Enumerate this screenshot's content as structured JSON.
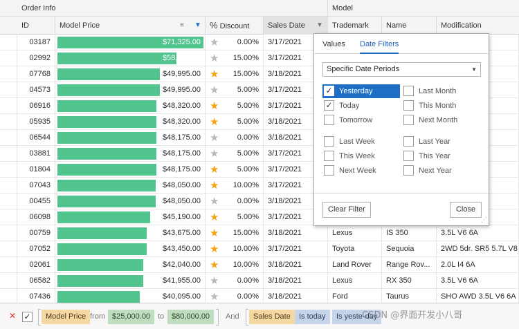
{
  "bands": {
    "order_info": "Order Info",
    "model": "Model"
  },
  "columns": {
    "id": "ID",
    "model_price": "Model Price",
    "discount": "Discount",
    "discount_prefix": "%",
    "sales_date": "Sales Date",
    "trademark": "Trademark",
    "name": "Name",
    "modification": "Modification"
  },
  "price_scale_max": 71325,
  "rows": [
    {
      "id": "03187",
      "price": "$71,325.00",
      "price_value": 71325,
      "discount": "0.00%",
      "rating": "empty",
      "date": "3/17/2021",
      "trademark": "",
      "name": "",
      "modification": ""
    },
    {
      "id": "02992",
      "price": "$58,095.00",
      "price_value": 58095,
      "discount": "15.00%",
      "rating": "empty",
      "date": "3/17/2021",
      "trademark": "",
      "name": "",
      "modification": ""
    },
    {
      "id": "07768",
      "price": "$49,995.00",
      "price_value": 49995,
      "discount": "15.00%",
      "rating": "full",
      "date": "3/18/2021",
      "trademark": "",
      "name": "",
      "modification": ""
    },
    {
      "id": "04573",
      "price": "$49,995.00",
      "price_value": 49995,
      "discount": "5.00%",
      "rating": "empty",
      "date": "3/17/2021",
      "trademark": "",
      "name": "",
      "modification": ""
    },
    {
      "id": "06916",
      "price": "$48,320.00",
      "price_value": 48320,
      "discount": "5.00%",
      "rating": "half",
      "date": "3/17/2021",
      "trademark": "",
      "name": "",
      "modification": "V6 8A"
    },
    {
      "id": "05935",
      "price": "$48,320.00",
      "price_value": 48320,
      "discount": "5.00%",
      "rating": "half",
      "date": "3/18/2021",
      "trademark": "",
      "name": "",
      "modification": "V6 8A"
    },
    {
      "id": "06544",
      "price": "$48,175.00",
      "price_value": 48175,
      "discount": "0.00%",
      "rating": "empty",
      "date": "3/18/2021",
      "trademark": "",
      "name": "",
      "modification": ""
    },
    {
      "id": "03881",
      "price": "$48,175.00",
      "price_value": 48175,
      "discount": "5.00%",
      "rating": "empty",
      "date": "3/17/2021",
      "trademark": "",
      "name": "",
      "modification": ""
    },
    {
      "id": "01804",
      "price": "$48,175.00",
      "price_value": 48175,
      "discount": "5.00%",
      "rating": "half",
      "date": "3/17/2021",
      "trademark": "",
      "name": "",
      "modification": ""
    },
    {
      "id": "07043",
      "price": "$48,050.00",
      "price_value": 48050,
      "discount": "10.00%",
      "rating": "half",
      "date": "3/17/2021",
      "trademark": "",
      "name": "",
      "modification": ""
    },
    {
      "id": "00455",
      "price": "$48,050.00",
      "price_value": 48050,
      "discount": "0.00%",
      "rating": "empty",
      "date": "3/18/2021",
      "trademark": "",
      "name": "",
      "modification": ""
    },
    {
      "id": "06098",
      "price": "$45,190.00",
      "price_value": 45190,
      "discount": "5.00%",
      "rating": "half",
      "date": "3/17/2021",
      "trademark": "",
      "name": "",
      "modification": "M"
    },
    {
      "id": "00759",
      "price": "$43,675.00",
      "price_value": 43675,
      "discount": "15.00%",
      "rating": "full",
      "date": "3/18/2021",
      "trademark": "Lexus",
      "name": "IS 350",
      "modification": "3.5L V6 6A"
    },
    {
      "id": "07052",
      "price": "$43,450.00",
      "price_value": 43450,
      "discount": "10.00%",
      "rating": "half",
      "date": "3/17/2021",
      "trademark": "Toyota",
      "name": "Sequoia",
      "modification": "2WD 5dr. SR5 5.7L V8"
    },
    {
      "id": "02061",
      "price": "$42,040.00",
      "price_value": 42040,
      "discount": "10.00%",
      "rating": "half",
      "date": "3/18/2021",
      "trademark": "Land Rover",
      "name": "Range Rov...",
      "modification": "2.0L I4 6A"
    },
    {
      "id": "06582",
      "price": "$41,955.00",
      "price_value": 41955,
      "discount": "0.00%",
      "rating": "empty",
      "date": "3/18/2021",
      "trademark": "Lexus",
      "name": "RX 350",
      "modification": "3.5L V6 6A"
    },
    {
      "id": "07436",
      "price": "$40,095.00",
      "price_value": 40095,
      "discount": "0.00%",
      "rating": "empty",
      "date": "3/18/2021",
      "trademark": "Ford",
      "name": "Taurus",
      "modification": "SHO AWD 3.5L V6 6A"
    }
  ],
  "popup": {
    "tab_values": "Values",
    "tab_date_filters": "Date Filters",
    "period_select": "Specific Date Periods",
    "options": [
      {
        "label": "Yesterday",
        "checked": true,
        "selected": true
      },
      {
        "label": "Last Month",
        "checked": false,
        "selected": false
      },
      {
        "label": "Today",
        "checked": true,
        "selected": false
      },
      {
        "label": "This Month",
        "checked": false,
        "selected": false
      },
      {
        "label": "Tomorrow",
        "checked": false,
        "selected": false
      },
      {
        "label": "Next Month",
        "checked": false,
        "selected": false
      },
      {
        "label": "Last Week",
        "checked": false,
        "selected": false
      },
      {
        "label": "Last Year",
        "checked": false,
        "selected": false
      },
      {
        "label": "This Week",
        "checked": false,
        "selected": false
      },
      {
        "label": "This Year",
        "checked": false,
        "selected": false
      },
      {
        "label": "Next Week",
        "checked": false,
        "selected": false
      },
      {
        "label": "Next Year",
        "checked": false,
        "selected": false
      }
    ],
    "clear_filter": "Clear Filter",
    "close": "Close"
  },
  "filter_panel": {
    "close_symbol": "✕",
    "check_symbol": "✓",
    "field1": "Model Price",
    "from_word": "from",
    "value_from": "$25,000.00",
    "to_word": "to",
    "value_to": "$80,000.00",
    "and_word": "And",
    "field2": "Sales Date",
    "is_today": "Is today",
    "is_yesterday": "Is yeste-day"
  },
  "watermark": "CSDN @界面开发小八哥",
  "colors": {
    "bar": "#52c48e",
    "accent": "#1e6ec8",
    "star": "#f3a417"
  }
}
